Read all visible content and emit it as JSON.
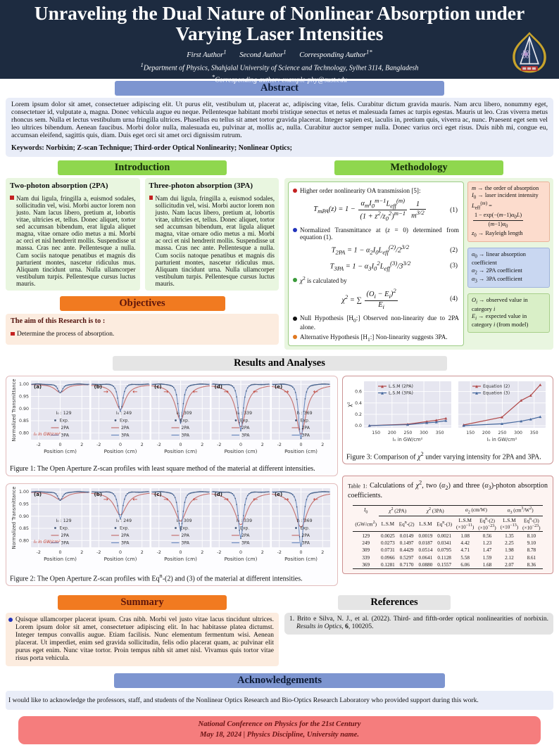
{
  "header": {
    "title": "Unraveling the Dual Nature of Nonlinear Absorption under Varying Laser Intensities",
    "authors": [
      {
        "name": "First Author",
        "sup": "1"
      },
      {
        "name": "Second Author",
        "sup": "1"
      },
      {
        "name": "Corresponding Author",
        "sup": "1*"
      }
    ],
    "affiliation_sup": "1",
    "affiliation": "Department of Physics, Shahjalal University of Science and Technology, Sylhet 3114, Bangladesh",
    "corresponding_sup": "*",
    "corresponding": "Corresponding author: example-phy@sust.edu",
    "logo_name": "sust-university-logo"
  },
  "abstract": {
    "heading": "Abstract",
    "body": "Lorem ipsum dolor sit amet, consectetuer adipiscing elit.  Ut purus elit, vestibulum ut, placerat ac, adipiscing vitae, felis.  Curabitur dictum gravida mauris.  Nam arcu libero, nonummy eget, consectetuer id, vulputate a, magna.  Donec vehicula augue eu neque.  Pellentesque habitant morbi tristique senectus et netus et malesuada fames ac turpis egestas.  Mauris ut leo.  Cras viverra metus rhoncus sem.  Nulla et lectus vestibulum urna fringilla ultrices.  Phasellus eu tellus sit amet tortor gravida placerat.  Integer sapien est, iaculis in, pretium quis, viverra ac, nunc.  Praesent eget sem vel leo ultrices bibendum.  Aenean faucibus.  Morbi dolor nulla, malesuada eu, pulvinar at, mollis ac, nulla.  Curabitur auctor semper nulla.  Donec varius orci eget risus.  Duis nibh mi, congue eu, accumsan eleifend, sagittis quis, diam.  Duis eget orci sit amet orci dignissim rutrum.",
    "keywords_label": "Keywords:",
    "keywords": "Norbixin; Z-scan Technique; Third-order Optical Nonlinearity; Nonlinear Optics;"
  },
  "introduction": {
    "heading": "Introduction",
    "columns": [
      {
        "title": "Two-photon absorption (2PA)",
        "text": "Nam dui ligula, fringilla a, euismod sodales, sollicitudin vel, wisi.  Morbi auctor lorem non justo.  Nam lacus libero, pretium at, lobortis vitae, ultricies et, tellus.  Donec aliquet, tortor sed accumsan bibendum, erat ligula aliquet magna, vitae ornare odio metus a mi.  Morbi ac orci et nisl hendrerit mollis.  Suspendisse ut massa.  Cras nec ante.  Pellentesque a nulla.  Cum sociis natoque penatibus et magnis dis parturient montes, nascetur ridiculus mus.  Aliquam tincidunt urna.  Nulla ullamcorper vestibulum turpis.  Pellentesque cursus luctus mauris."
      },
      {
        "title": "Three-photon absorption (3PA)",
        "text": "Nam dui ligula, fringilla a, euismod sodales, sollicitudin vel, wisi.  Morbi auctor lorem non justo.  Nam lacus libero, pretium at, lobortis vitae, ultricies et, tellus.  Donec aliquet, tortor sed accumsan bibendum, erat ligula aliquet magna, vitae ornare odio metus a mi.  Morbi ac orci et nisl hendrerit mollis.  Suspendisse ut massa.  Cras nec ante.  Pellentesque a nulla.  Cum sociis natoque penatibus et magnis dis parturient montes, nascetur ridiculus mus.  Aliquam tincidunt urna.  Nulla ullamcorper vestibulum turpis.  Pellentesque cursus luctus mauris."
      }
    ]
  },
  "objectives": {
    "heading": "Objectives",
    "lead": "The aim of this Research is to :",
    "items": [
      "Determine the process of absorption."
    ]
  },
  "methodology": {
    "heading": "Methodology",
    "bullets": [
      {
        "color": "#c42020",
        "html": "Higher order nonlinearity OA transmission [5]:"
      },
      {
        "color": "#2233bb",
        "html": "Normalized Transmittance at (<i>z</i> = 0) determined from equation (1)."
      },
      {
        "color": "#3a9a3a",
        "html": "<i>&chi;</i><sup>2</sup> is calculated by"
      },
      {
        "color": "#111111",
        "html": "Null Hypothesis [H<sub>0</sub>:] Observed non-linearity due to 2PA alone."
      },
      {
        "color": "#e07820",
        "html": "Alternative Hypothesis [H<sub>1</sub>:] Non-linearity suggests 3PA."
      }
    ],
    "eq1": {
      "lhs": "<i>T<sub>mPA</sub></i>(<i>z</i>) = 1 &minus;",
      "f1num": "<i>&alpha;<sub>m</sub>I</i><sub>0</sub><sup><i>m</i>&minus;1</sup><i>L</i><sub>eff</sub><sup>(<i>m</i>)</sup>",
      "f1den": "(1 + <i>z</i><sup>2</sup>/<i>z</i><sub>0</sub><sup>2</sup>)<sup><i>m</i>&minus;1</sup>",
      "f2num": "1",
      "f2den": "<i>m</i><sup>3/2</sup>",
      "tag": "(1)"
    },
    "eq2": {
      "body": "<i>T</i><sub>2<i>PA</i></sub> = 1 &minus; <i>&alpha;</i><sub>2</sub><i>I</i><sub>0</sub><i>L</i><sub>eff</sub><sup>(2)</sup>/2<sup>3/2</sup>",
      "tag": "(2)"
    },
    "eq3": {
      "body": "<i>T</i><sub>3<i>PA</i></sub> = 1 &minus; <i>&alpha;</i><sub>3</sub><i>I</i><sub>0</sub><sup>2</sup><i>L</i><sub>eff</sub><sup>(3)</sup>/3<sup>3/2</sup>",
      "tag": "(3)"
    },
    "eq4": {
      "lhs": "<i>&chi;</i><sup>2</sup> = &sum;",
      "fnum": "(<i>O<sub>i</sub></i> &minus; <i>E<sub>i</sub></i>)<sup>2</sup>",
      "fden": "<i>E<sub>i</sub></i>",
      "tag": "(4)"
    },
    "side_boxes": [
      {
        "style": "pink",
        "lines": [
          "<i>m</i> &rarr; the order of absorption",
          "<i>I</i><sub>0</sub> &rarr; laser incident intensity",
          "<i>L</i><sub>eff</sub><sup>(<i>m</i>)</sup> = <span class='frac'><span class='fnum'>1 &minus; exp(&minus;(<i>m</i>&minus;1)<i>&alpha;</i><sub>0</sub><i>L</i>)</span><span class='fden'>(<i>m</i>&minus;1)<i>&alpha;</i><sub>0</sub></span></span>",
          "<i>z</i><sub>0</sub> &rarr; Rayleigh length"
        ]
      },
      {
        "style": "blue",
        "lines": [
          "<i>&alpha;</i><sub>0</sub> &rarr; linear absorption coefficient",
          "<i>&alpha;</i><sub>2</sub> &rarr; 2PA coefficient",
          "<i>&alpha;</i><sub>3</sub> &rarr; 3PA coefficient"
        ]
      },
      {
        "style": "green",
        "lines": [
          "<i>O<sub>i</sub></i> &rarr; observed value in category <i>i</i>",
          "<i>E<sub>i</sub></i> &rarr; expected value in category <i>i</i> (from model)"
        ]
      }
    ]
  },
  "results": {
    "heading": "Results and Analyses",
    "figure1_caption": "Figure 1: The Open Aperture Z-scan profiles with least square method of the material at different intensities.",
    "figure2_caption": "Figure 2: The Open Aperture Z-scan profiles with Eq<sup>n</sup>-(2) and (3) of the material at different intensities.",
    "figure3_caption": "Figure 3: Comparison of <i>&chi;</i><sup>2</sup> under varying intensity for 2PA and 3PA.",
    "table": {
      "caption_label": "Table 1:",
      "caption_html": "Calculations of <i>&chi;</i><sup>2</sup>, two (<i>&alpha;</i><sub>2</sub>) and three (<i>&alpha;</i><sub>3</sub>)-photon absorption coefficients.",
      "group_headers": [
        "<i>I</i><sub>0</sub>",
        "<i>&chi;</i><sup>2</sup> (2PA)",
        "<i>&chi;</i><sup>2</sup> (3PA)",
        "<i>&alpha;</i><sub>2</sub> (cm/W)",
        "<i>&alpha;</i><sub>3</sub> (cm<sup>3</sup>/W<sup>2</sup>)"
      ],
      "sub_headers": [
        "(GW/cm<sup>2</sup>)",
        "L.S.M",
        "Eq<sup>n</sup>-(2)",
        "L.S.M",
        "Eq<sup>n</sup>-(3)",
        "L.S.M<br>(&times;10<sup>&minus;11</sup>)",
        "Eq<sup>n</sup>-(2)<br>(&times;10<sup>&minus;23</sup>)",
        "L.S.M<br>(&times;10<sup>&minus;13</sup>)",
        "Eq<sup>n</sup>-(3)<br>(&times;10<sup>&minus;23</sup>)"
      ],
      "rows": [
        [
          "129",
          "0.0025",
          "0.0149",
          "0.0019",
          "0.0021",
          "1.08",
          "0.56",
          "1.35",
          "8.10"
        ],
        [
          "249",
          "0.0273",
          "0.1497",
          "0.0187",
          "0.0341",
          "4.42",
          "1.23",
          "2.25",
          "9.10"
        ],
        [
          "309",
          "0.0731",
          "0.4429",
          "0.0514",
          "0.0795",
          "4.71",
          "1.47",
          "1.98",
          "8.78"
        ],
        [
          "339",
          "0.0966",
          "0.5297",
          "0.0641",
          "0.1128",
          "5.58",
          "1.59",
          "2.12",
          "8.61"
        ],
        [
          "369",
          "0.1281",
          "0.7170",
          "0.0880",
          "0.1557",
          "6.06",
          "1.68",
          "2.07",
          "8.36"
        ]
      ]
    }
  },
  "chart_data": [
    {
      "id": "figure1",
      "type": "line",
      "xlabel": "Position (cm)",
      "ylabel": "Normalized Transmittance",
      "xlim": [
        -2.7,
        2.7
      ],
      "xticks": [
        -2,
        0,
        2
      ],
      "ylim": [
        0.772,
        1.015
      ],
      "yticks": [
        1.0,
        0.95,
        0.9,
        0.85,
        0.8
      ],
      "unit_note": "I₀ in GW/cm²",
      "legend": [
        "Exp.",
        "2PA",
        "3PA"
      ],
      "panels": [
        {
          "label": "(a)",
          "I0": 129,
          "dip3": 0.036,
          "w3": 0.4,
          "dip2": 0.034,
          "w2": 0.58,
          "arrows": false
        },
        {
          "label": "(b)",
          "I0": 249,
          "dip3": 0.11,
          "w3": 0.4,
          "dip2": 0.103,
          "w2": 0.58,
          "arrows": true
        },
        {
          "label": "(c)",
          "I0": 309,
          "dip3": 0.16,
          "w3": 0.4,
          "dip2": 0.148,
          "w2": 0.58,
          "arrows": true
        },
        {
          "label": "(d)",
          "I0": 339,
          "dip3": 0.19,
          "w3": 0.4,
          "dip2": 0.175,
          "w2": 0.58,
          "arrows": true
        },
        {
          "label": "(e)",
          "I0": 369,
          "dip3": 0.225,
          "w3": 0.4,
          "dip2": 0.205,
          "w2": 0.58,
          "arrows": true
        }
      ]
    },
    {
      "id": "figure2",
      "type": "line",
      "xlabel": "Position (cm)",
      "ylabel": "Normalized Transmittance",
      "xlim": [
        -2.7,
        2.7
      ],
      "xticks": [
        -2,
        0,
        2
      ],
      "ylim": [
        0.772,
        1.015
      ],
      "yticks": [
        1.0,
        0.95,
        0.9,
        0.85,
        0.8
      ],
      "unit_note": "I₀ in GW/cm²",
      "legend": [
        "Exp.",
        "2PA",
        "3PA"
      ],
      "panels": [
        {
          "label": "(a)",
          "I0": 129,
          "dip3": 0.036,
          "w3": 0.4,
          "dip2": 0.032,
          "w2": 0.7,
          "arrows": false
        },
        {
          "label": "(b)",
          "I0": 249,
          "dip3": 0.11,
          "w3": 0.4,
          "dip2": 0.095,
          "w2": 0.7,
          "arrows": true
        },
        {
          "label": "(c)",
          "I0": 309,
          "dip3": 0.16,
          "w3": 0.4,
          "dip2": 0.12,
          "w2": 0.7,
          "arrows": true
        },
        {
          "label": "(d)",
          "I0": 339,
          "dip3": 0.19,
          "w3": 0.4,
          "dip2": 0.135,
          "w2": 0.7,
          "arrows": true
        },
        {
          "label": "(e)",
          "I0": 369,
          "dip3": 0.225,
          "w3": 0.4,
          "dip2": 0.145,
          "w2": 0.7,
          "arrows": true
        }
      ]
    },
    {
      "id": "figure3",
      "type": "line",
      "x": [
        129,
        249,
        309,
        339,
        369
      ],
      "xlabel": "I₀ in GW/cm²",
      "ylabel": "χ²",
      "xticks": [
        150,
        200,
        250,
        300,
        350
      ],
      "xlim": [
        112,
        386
      ],
      "ylim": [
        -0.035,
        0.78
      ],
      "yticks": [
        0.0,
        0.2,
        0.4,
        0.6
      ],
      "panels": [
        {
          "series": [
            {
              "name": "L.S.M (2PA)",
              "color": "#b04848",
              "values": [
                0.0025,
                0.0273,
                0.0731,
                0.0966,
                0.1281
              ]
            },
            {
              "name": "L.S.M (3PA)",
              "color": "#47699e",
              "values": [
                0.0019,
                0.0187,
                0.0514,
                0.0641,
                0.088
              ]
            }
          ]
        },
        {
          "series": [
            {
              "name": "Equation (2)",
              "color": "#b04848",
              "values": [
                0.0149,
                0.1497,
                0.4429,
                0.5297,
                0.717
              ]
            },
            {
              "name": "Equation (3)",
              "color": "#47699e",
              "values": [
                0.0021,
                0.0341,
                0.0795,
                0.1128,
                0.1557
              ]
            }
          ]
        }
      ]
    }
  ],
  "summary": {
    "heading": "Summary",
    "text": "Quisque ullamcorper placerat ipsum.  Cras nibh.  Morbi vel justo vitae lacus tincidunt ultrices.  Lorem ipsum dolor sit amet, consectetuer adipiscing elit.  In hac habitasse platea dictumst.  Integer tempus convallis augue.  Etiam facilisis.  Nunc elementum fermentum wisi.  Aenean placerat.  Ut imperdiet, enim sed gravida sollicitudin, felis odio placerat quam, ac pulvinar elit purus eget enim.  Nunc vitae tortor.  Proin tempus nibh sit amet nisl.  Vivamus quis tortor vitae risus porta vehicula."
  },
  "references": {
    "heading": "References",
    "items": [
      {
        "html": "1. Brito e Silva, N. J., et al.  (2022).  Third- and fifth-order optical nonlinearities of norbixin.  <i>Results in Optics</i>, <b>6</b>, 100205."
      }
    ]
  },
  "acknowledgements": {
    "heading": "Acknowledgements",
    "text": "I would like to acknowledge the professors, staff, and students of the Nonlinear Optics Research and Bio-Optics Research Laboratory who provided support during this work."
  },
  "footer": {
    "line1": "National Conference on Physics for the 21st Century",
    "line2": "May 18, 2024  | Physics Discipline, University name."
  },
  "colors": {
    "header_bg": "#1d2b40",
    "blue_bar": "#7d95d0",
    "green_bar": "#8fd74e",
    "orange_bar": "#f17a20",
    "grey_bar": "#e5e5e5",
    "footer_bg": "#f57d7d",
    "plot_bg": "#e6e6f0",
    "exp_dot": "#3f5577",
    "line_2pa": "#c4716f",
    "line_3pa": "#6e8cbf"
  }
}
